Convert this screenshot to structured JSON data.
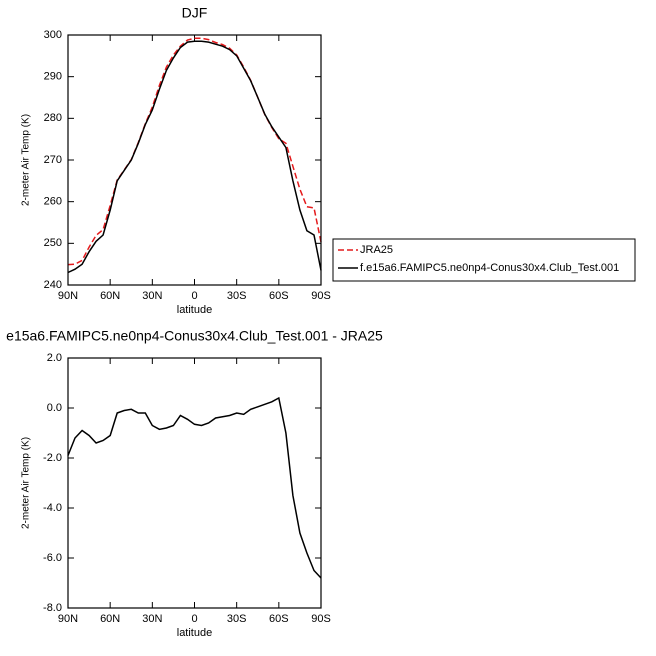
{
  "chart_data": [
    {
      "type": "line",
      "title": "DJF",
      "xlabel": "latitude",
      "ylabel": "2-meter Air Temp (K)",
      "x": [
        90,
        85,
        80,
        75,
        70,
        65,
        60,
        55,
        50,
        45,
        40,
        35,
        30,
        25,
        20,
        15,
        10,
        5,
        0,
        -5,
        -10,
        -15,
        -20,
        -25,
        -30,
        -35,
        -40,
        -45,
        -50,
        -55,
        -60,
        -65,
        -70,
        -75,
        -80,
        -85,
        -90
      ],
      "series": [
        {
          "name": "JRA25",
          "color": "#e41a1c",
          "line_style": "dashed",
          "values": [
            244.9,
            245,
            245.9,
            249.1,
            251.9,
            253.3,
            259.1,
            265.2,
            267.6,
            270.1,
            274.2,
            278.7,
            282.7,
            287.9,
            292.3,
            295.2,
            297.3,
            298.8,
            299.2,
            299.2,
            298.9,
            298.2,
            297.7,
            296.8,
            295.2,
            292.3,
            289.1,
            285,
            280.9,
            277.8,
            275.1,
            274,
            268.5,
            263,
            258.8,
            258.5,
            250.3
          ]
        },
        {
          "name": "f.e15a6.FAMIPC5.ne0np4-Conus30x4.Club_Test.001",
          "color": "#000000",
          "line_style": "solid",
          "values": [
            243,
            243.8,
            245,
            248,
            250.5,
            252,
            258,
            265,
            267.5,
            270,
            274,
            278.5,
            282,
            287,
            291.5,
            294.5,
            297,
            298.3,
            298.5,
            298.5,
            298.3,
            297.8,
            297.3,
            296.5,
            295,
            292,
            289,
            285,
            281,
            278,
            275.5,
            273,
            265,
            258,
            253,
            252,
            243.5
          ]
        }
      ],
      "xlim": [
        90,
        -90
      ],
      "xticks": [
        {
          "value": 90,
          "label": "90N"
        },
        {
          "value": 60,
          "label": "60N"
        },
        {
          "value": 30,
          "label": "30N"
        },
        0,
        {
          "value": -30,
          "label": "30S"
        },
        {
          "value": -60,
          "label": "60S"
        },
        {
          "value": -90,
          "label": "90S"
        }
      ],
      "ylim": [
        240,
        300
      ],
      "yticks": [
        240,
        250,
        260,
        270,
        280,
        290,
        300
      ],
      "legend": "outside-right"
    },
    {
      "type": "line",
      "title": "e15a6.FAMIPC5.ne0np4-Conus30x4.Club_Test.001 - JRA25",
      "xlabel": "latitude",
      "ylabel": "2-meter Air Temp (K)",
      "x": [
        90,
        85,
        80,
        75,
        70,
        65,
        60,
        55,
        50,
        45,
        40,
        35,
        30,
        25,
        20,
        15,
        10,
        5,
        0,
        -5,
        -10,
        -15,
        -20,
        -25,
        -30,
        -35,
        -40,
        -45,
        -50,
        -55,
        -60,
        -65,
        -70,
        -75,
        -80,
        -85,
        -90
      ],
      "series": [
        {
          "color": "#000000",
          "line_style": "solid",
          "values": [
            -1.9,
            -1.2,
            -0.9,
            -1.1,
            -1.4,
            -1.3,
            -1.1,
            -0.2,
            -0.1,
            -0.05,
            -0.2,
            -0.2,
            -0.7,
            -0.85,
            -0.8,
            -0.7,
            -0.3,
            -0.45,
            -0.65,
            -0.7,
            -0.6,
            -0.4,
            -0.35,
            -0.3,
            -0.2,
            -0.25,
            -0.05,
            0.05,
            0.15,
            0.25,
            0.4,
            -1.0,
            -3.5,
            -5.0,
            -5.8,
            -6.5,
            -6.8
          ]
        }
      ],
      "xlim": [
        90,
        -90
      ],
      "xticks": [
        {
          "value": 90,
          "label": "90N"
        },
        {
          "value": 60,
          "label": "60N"
        },
        {
          "value": 30,
          "label": "30N"
        },
        0,
        {
          "value": -30,
          "label": "30S"
        },
        {
          "value": -60,
          "label": "60S"
        },
        {
          "value": -90,
          "label": "90S"
        }
      ],
      "ylim": [
        -8,
        2
      ],
      "yticks": [
        {
          "value": -8,
          "label": "-8.0"
        },
        {
          "value": -6,
          "label": "-6.0"
        },
        {
          "value": -4,
          "label": "-4.0"
        },
        {
          "value": -2,
          "label": "-2.0"
        },
        {
          "value": 0,
          "label": "0.0"
        },
        {
          "value": 2,
          "label": "2.0"
        }
      ]
    }
  ]
}
